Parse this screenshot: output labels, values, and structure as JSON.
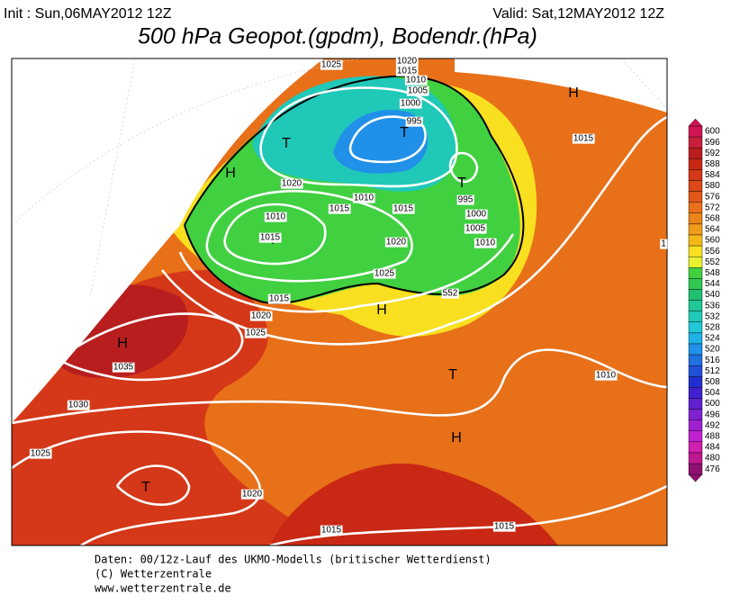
{
  "header": {
    "init": "Init : Sun,06MAY2012 12Z",
    "valid": "Valid: Sat,12MAY2012 12Z",
    "title": "500 hPa Geopot.(gpdm), Bodendr.(hPa)"
  },
  "map": {
    "pressure_centers": [
      "H",
      "T",
      "H",
      "T",
      "T",
      "T",
      "H",
      "H",
      "T",
      "H",
      "T"
    ],
    "isobar_labels": [
      "1025",
      "1020",
      "1015",
      "1010",
      "1005",
      "1000",
      "995",
      "1015",
      "1020",
      "1010",
      "1015",
      "1010",
      "1015",
      "995",
      "1000",
      "1005",
      "1010",
      "1015",
      "1020",
      "1025",
      "1015",
      "1020",
      "1025",
      "552",
      "1035",
      "1030",
      "1025",
      "1010",
      "1020",
      "1015",
      "1015",
      "1"
    ]
  },
  "colorbar": {
    "ticks": [
      600,
      596,
      592,
      588,
      584,
      580,
      576,
      572,
      568,
      564,
      560,
      556,
      552,
      548,
      544,
      540,
      536,
      532,
      528,
      524,
      520,
      516,
      512,
      508,
      504,
      500,
      496,
      492,
      488,
      484,
      480,
      476
    ],
    "colors": [
      "#d01454",
      "#c81e3c",
      "#b81e1e",
      "#c82814",
      "#d43818",
      "#dc4818",
      "#e05818",
      "#e87018",
      "#ec8418",
      "#f09c18",
      "#f4b818",
      "#f8e020",
      "#e8f030",
      "#40d040",
      "#30c850",
      "#20c070",
      "#20c898",
      "#20c8b8",
      "#20c8d8",
      "#20b0e8",
      "#2090e8",
      "#2070e0",
      "#2050d8",
      "#2030d0",
      "#4020d0",
      "#6020d0",
      "#8020d0",
      "#a020d0",
      "#c020d0",
      "#d020b0",
      "#c01890",
      "#901070"
    ]
  },
  "footer": {
    "lines": [
      "Daten: 00/12z-Lauf des UKMO-Modells (britischer Wetterdienst)",
      "(C) Wetterzentrale",
      "www.wetterzentrale.de"
    ]
  }
}
